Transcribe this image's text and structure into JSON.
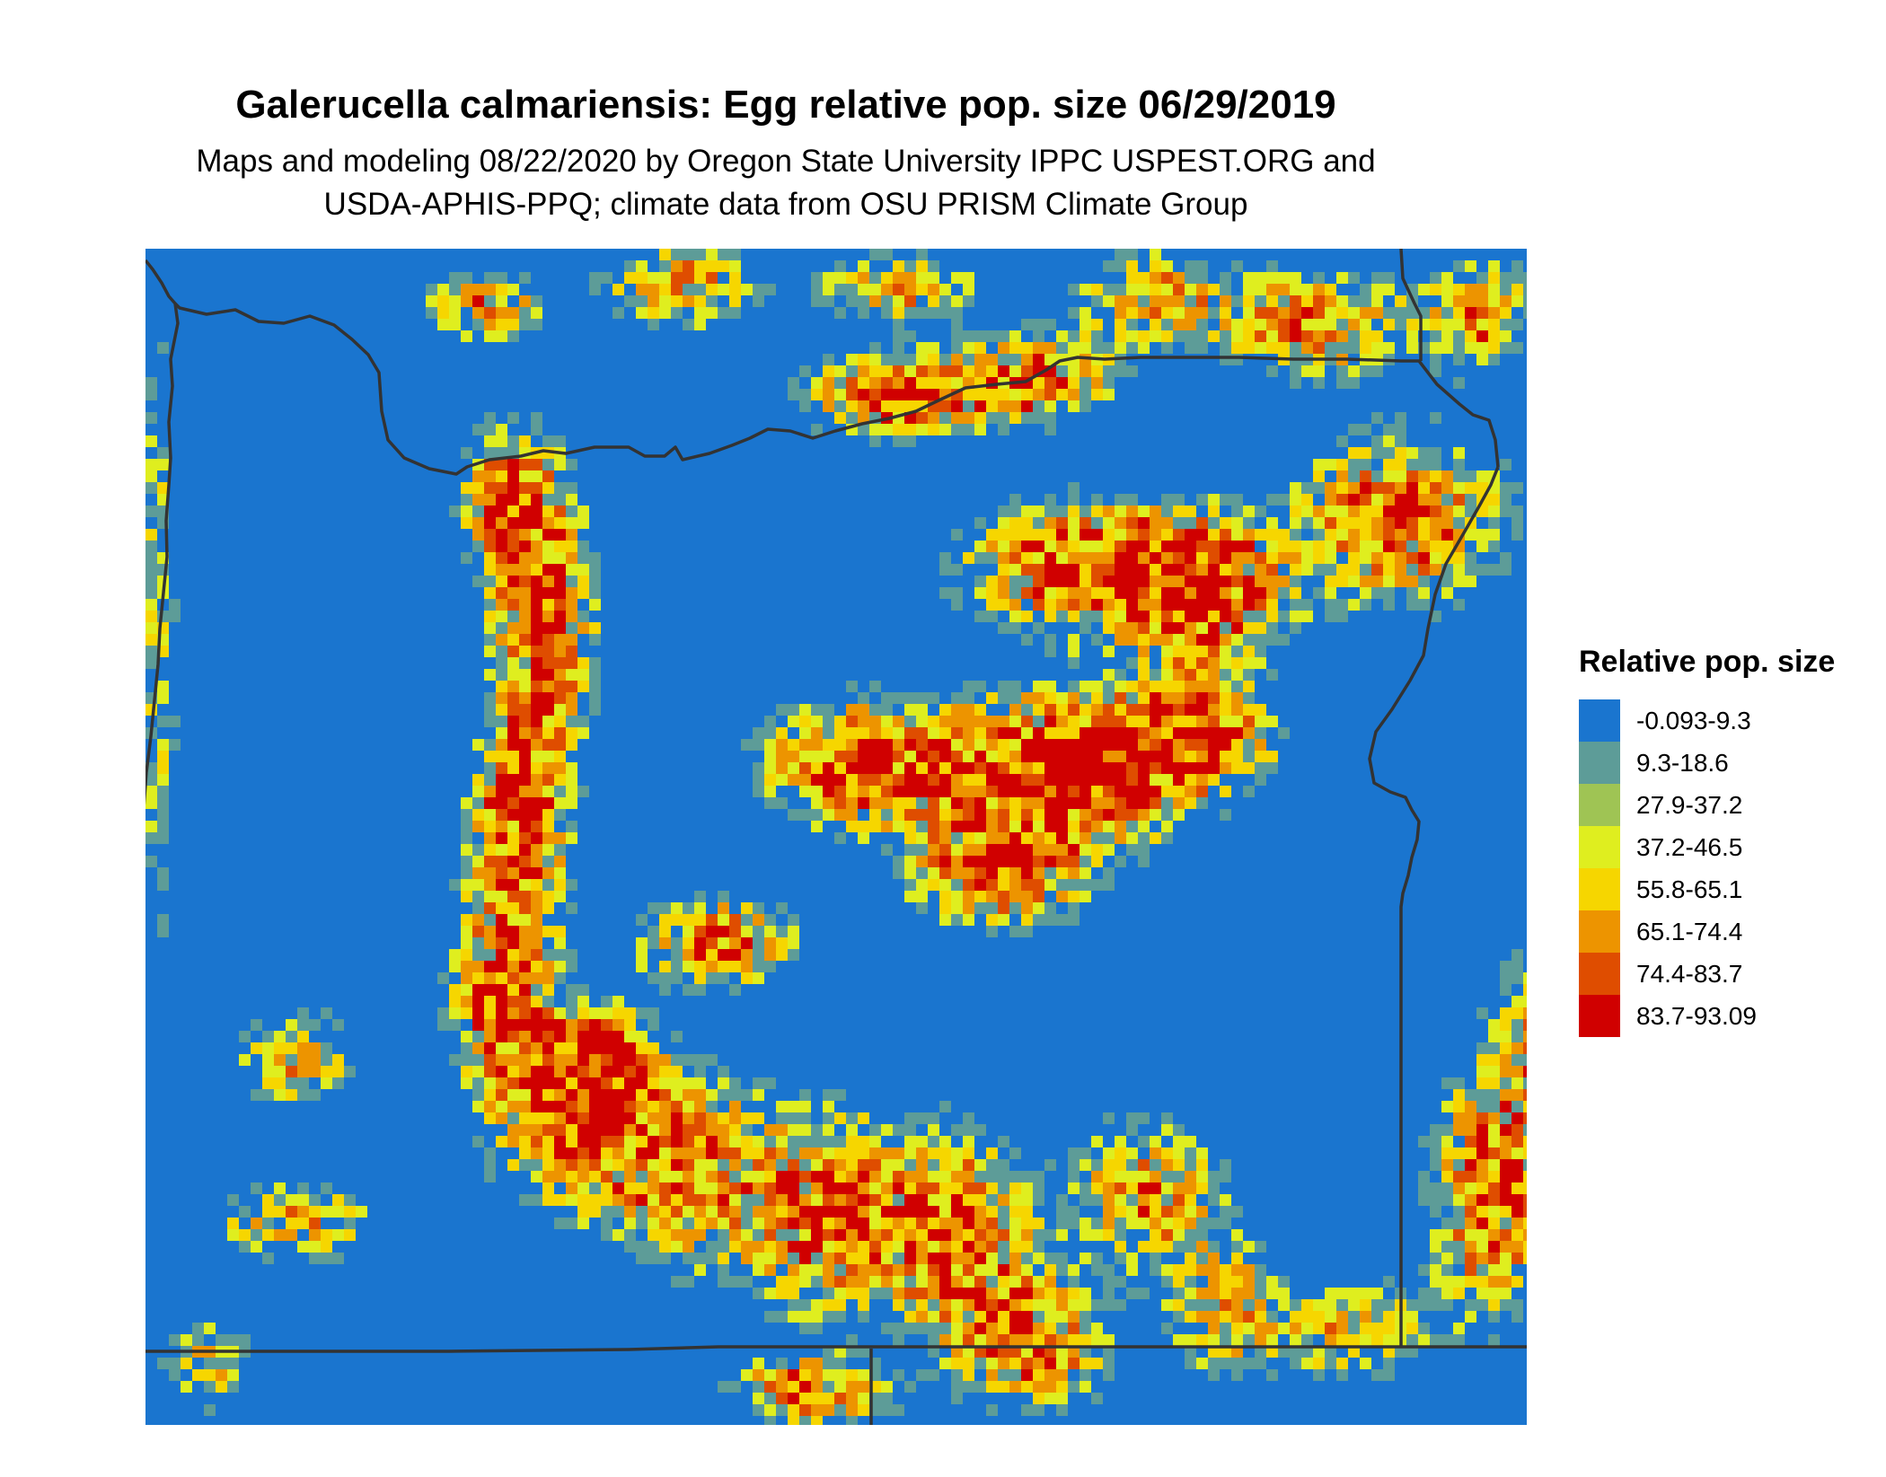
{
  "title": "Galerucella calmariensis: Egg relative pop. size 06/29/2019",
  "subtitle_line1": "Maps and modeling 08/22/2020 by Oregon State University IPPC USPEST.ORG and",
  "subtitle_line2": "USDA-APHIS-PPQ; climate data from OSU PRISM Climate Group",
  "legend": {
    "title": "Relative pop. size",
    "items": [
      {
        "label": "-0.093-9.3",
        "color": "#1a75cf"
      },
      {
        "label": "9.3-18.6",
        "color": "#5d9c98"
      },
      {
        "label": "27.9-37.2",
        "color": "#9fc454"
      },
      {
        "label": "37.2-46.5",
        "color": "#dfee1f"
      },
      {
        "label": "55.8-65.1",
        "color": "#f6d600"
      },
      {
        "label": "65.1-74.4",
        "color": "#ed9400"
      },
      {
        "label": "74.4-83.7",
        "color": "#df4d00"
      },
      {
        "label": "83.7-93.09",
        "color": "#d00000"
      }
    ]
  },
  "map": {
    "background_color": "#1a75cf",
    "border_color": "#333333"
  }
}
